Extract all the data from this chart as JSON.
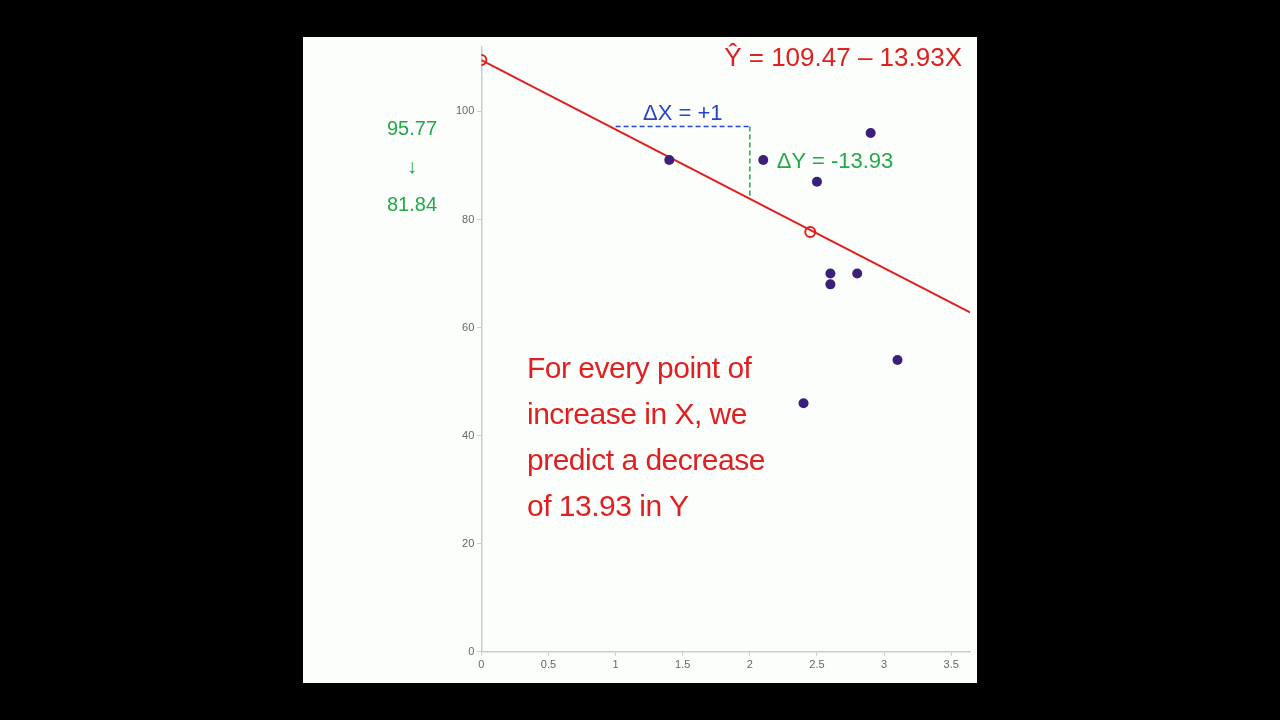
{
  "chart_data": {
    "type": "scatter",
    "title": "Ŷ = 109.47 – 13.93X",
    "xlim": [
      0,
      3.64
    ],
    "ylim": [
      0,
      112
    ],
    "xticks": [
      0,
      0.5,
      1,
      1.5,
      2,
      2.5,
      3,
      3.5
    ],
    "yticks": [
      0,
      20,
      40,
      60,
      80,
      100
    ],
    "grid": false,
    "legend": false,
    "marker": "circle",
    "series": [
      {
        "type": "line",
        "color": "#e02020",
        "x": [
          0,
          3.64
        ],
        "values": [
          109.5,
          62.8
        ],
        "marker": "none",
        "line_style": "solid"
      },
      {
        "type": "scatter",
        "color": "#3b1f7a",
        "x": [
          1.4,
          2.1,
          2.5,
          2.9,
          2.6,
          2.6,
          2.8,
          3.1,
          2.4
        ],
        "values": [
          91,
          91,
          87,
          96,
          70,
          68,
          70,
          54,
          46
        ]
      },
      {
        "type": "scatter",
        "color": "#e02020",
        "x": [
          0,
          2.45
        ],
        "values": [
          109.5,
          77.7
        ],
        "marker": "circle"
      },
      {
        "type": "line",
        "color": "#2a44c8",
        "x": [
          1,
          2
        ],
        "values": [
          97.2,
          97.2
        ],
        "marker": "none",
        "line_style": "dashed"
      },
      {
        "type": "line",
        "color": "#22a84a",
        "x": [
          2,
          2
        ],
        "values": [
          97.2,
          84.2
        ],
        "marker": "none",
        "line_style": "dashed"
      }
    ],
    "annotations": [
      {
        "text": "ΔX = +1",
        "x": 1.5,
        "y": 97.2
      },
      {
        "text": "ΔY = -13.93",
        "x": 2,
        "y": 90.7
      },
      "95.77",
      "↓",
      "81.84",
      "For every point of\nincrease in X, we\npredict a decrease\nof 13.93 in Y"
    ]
  }
}
